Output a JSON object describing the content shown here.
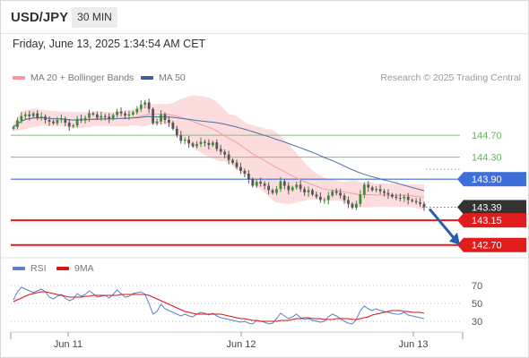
{
  "header": {
    "symbol": "USD/JPY",
    "timeframe": "30 MIN",
    "datetime": "Friday, June 13, 2025 1:34:54 AM CET"
  },
  "legend": {
    "ma20_label": "MA 20 + Bollinger Bands",
    "ma50_label": "MA 50",
    "rsi_label": "RSI",
    "ma9_label": "9MA",
    "credit": "Research © 2025 Trading Central"
  },
  "colors": {
    "candle_up": "#3a8a3a",
    "candle_down": "#555555",
    "bollinger_fill": "#fbd6d6",
    "ma20": "#f0a0a0",
    "ma50": "#4a6fa8",
    "target_green": "#7cc37c",
    "pivot_blue": "#3e6fd9",
    "support_red": "#e11c1c",
    "current_dark": "#333333",
    "arrow": "#2a5ea8",
    "rsi": "#5a7fd0",
    "rsi_ma9": "#dd1111"
  },
  "chart_data": [
    {
      "type": "candlestick",
      "title": "USD/JPY",
      "series": [
        {
          "name": "MA 20 + Bollinger Bands"
        },
        {
          "name": "MA 50"
        }
      ],
      "ylim": [
        142.5,
        145.6
      ],
      "x_ticks": [
        "Jun 11",
        "Jun 12",
        "Jun 13"
      ],
      "close": [
        144.85,
        144.97,
        145.05,
        145.08,
        145.05,
        145.1,
        145.02,
        145.04,
        144.98,
        144.95,
        144.92,
        144.98,
        145.0,
        144.93,
        144.86,
        144.88,
        145.0,
        144.98,
        145.02,
        145.1,
        145.08,
        145.02,
        145.05,
        145.04,
        145.0,
        145.07,
        145.13,
        145.1,
        145.06,
        145.08,
        145.12,
        145.18,
        145.26,
        145.3,
        145.18,
        144.92,
        144.95,
        145.08,
        144.98,
        144.93,
        144.82,
        144.7,
        144.6,
        144.62,
        144.55,
        144.5,
        144.54,
        144.58,
        144.56,
        144.52,
        144.57,
        144.45,
        144.4,
        144.35,
        144.25,
        144.2,
        144.12,
        144.05,
        144.0,
        143.9,
        143.78,
        143.85,
        143.82,
        143.78,
        143.7,
        143.65,
        143.72,
        143.86,
        143.78,
        143.7,
        143.75,
        143.8,
        143.72,
        143.66,
        143.7,
        143.62,
        143.58,
        143.52,
        143.52,
        143.6,
        143.68,
        143.65,
        143.6,
        143.52,
        143.45,
        143.38,
        143.45,
        143.62,
        143.8,
        143.75,
        143.7,
        143.72,
        143.68,
        143.65,
        143.62,
        143.58,
        143.56,
        143.55,
        143.58,
        143.52,
        143.5,
        143.48,
        143.45,
        143.39
      ]
    },
    {
      "type": "line",
      "title": "RSI",
      "series": [
        {
          "name": "RSI",
          "values": [
            54,
            63,
            68,
            66,
            64,
            62,
            64,
            66,
            63,
            57,
            55,
            58,
            60,
            56,
            53,
            55,
            61,
            58,
            60,
            64,
            61,
            57,
            58,
            59,
            56,
            60,
            65,
            61,
            57,
            58,
            61,
            62,
            63,
            60,
            50,
            38,
            41,
            49,
            44,
            42,
            40,
            38,
            36,
            38,
            36,
            35,
            38,
            40,
            39,
            37,
            39,
            36,
            34,
            33,
            32,
            31,
            30,
            29,
            30,
            28,
            27,
            31,
            30,
            29,
            27,
            28,
            33,
            39,
            36,
            33,
            35,
            38,
            34,
            32,
            33,
            31,
            30,
            29,
            30,
            35,
            38,
            36,
            33,
            30,
            28,
            27,
            32,
            42,
            47,
            44,
            42,
            44,
            42,
            41,
            40,
            39,
            38,
            38,
            40,
            37,
            36,
            35,
            34,
            33
          ]
        },
        {
          "name": "9MA",
          "values": [
            52,
            54,
            56,
            58,
            60,
            61,
            62,
            63,
            63,
            62,
            61,
            60,
            59,
            58,
            57,
            57,
            57,
            57,
            58,
            58,
            59,
            59,
            59,
            59,
            59,
            59,
            59,
            60,
            60,
            60,
            60,
            60,
            60,
            60,
            59,
            57,
            55,
            53,
            51,
            49,
            47,
            45,
            43,
            41,
            40,
            39,
            38,
            38,
            38,
            38,
            38,
            38,
            38,
            37,
            36,
            35,
            34,
            33,
            33,
            32,
            31,
            31,
            30,
            30,
            30,
            30,
            30,
            31,
            31,
            31,
            32,
            33,
            33,
            34,
            34,
            33,
            33,
            33,
            32,
            32,
            32,
            33,
            33,
            33,
            33,
            32,
            32,
            33,
            34,
            35,
            37,
            38,
            39,
            40,
            41,
            42,
            42,
            42,
            41,
            41,
            40,
            40,
            40,
            39
          ]
        }
      ],
      "ylim": [
        20,
        80
      ],
      "y_ticks": [
        70,
        50,
        30
      ]
    }
  ],
  "levels": [
    {
      "price": 144.7,
      "label": "144.70",
      "kind": "target"
    },
    {
      "price": 144.3,
      "label": "144.30",
      "kind": "target"
    },
    {
      "price": 143.9,
      "label": "143.90",
      "kind": "pivot"
    },
    {
      "price": 143.39,
      "label": "143.39",
      "kind": "current"
    },
    {
      "price": 143.15,
      "label": "143.15",
      "kind": "support"
    },
    {
      "price": 142.7,
      "label": "142.70",
      "kind": "support"
    }
  ]
}
